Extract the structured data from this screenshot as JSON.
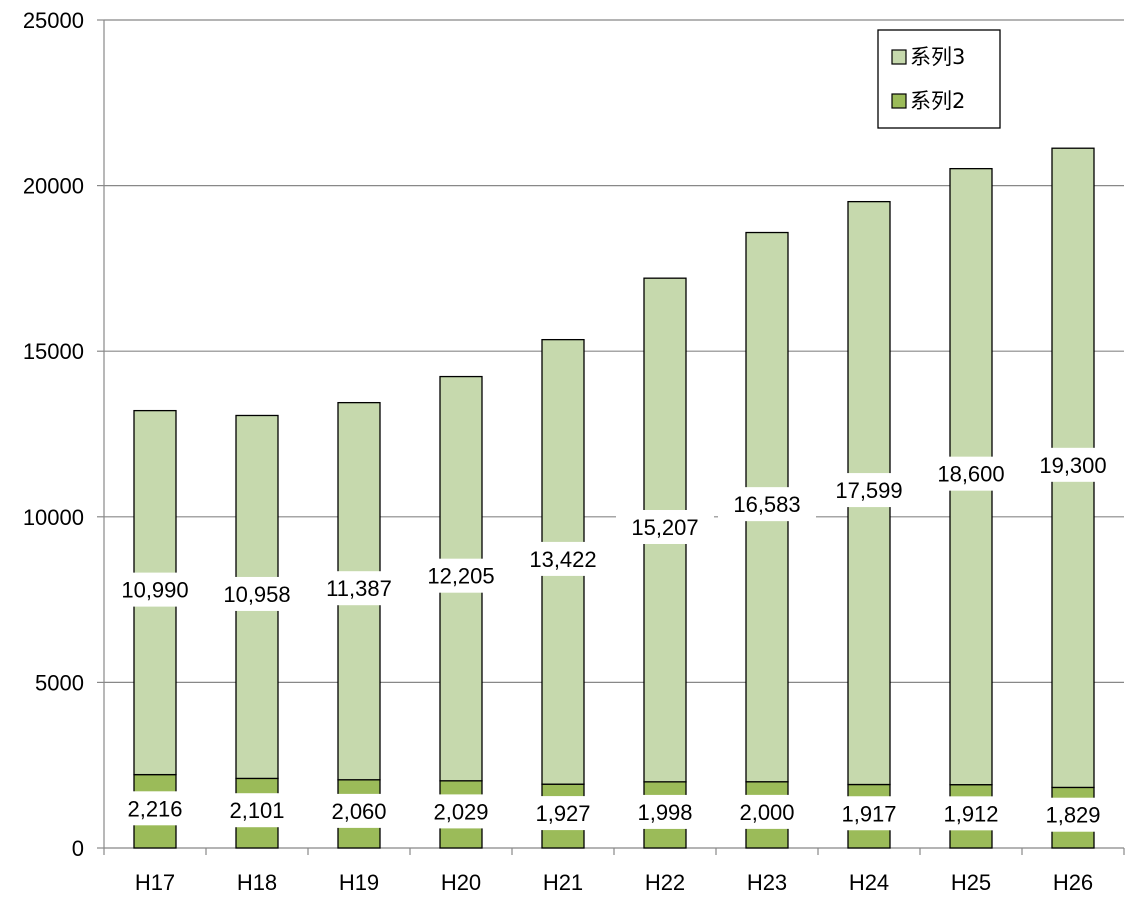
{
  "chart_data": {
    "type": "bar",
    "stacked": true,
    "categories": [
      "H17",
      "H18",
      "H19",
      "H20",
      "H21",
      "H22",
      "H23",
      "H24",
      "H25",
      "H26"
    ],
    "series": [
      {
        "name": "系列2",
        "values": [
          2216,
          2101,
          2060,
          2029,
          1927,
          1998,
          2000,
          1917,
          1912,
          1829
        ],
        "labels": [
          "2,216",
          "2,101",
          "2,060",
          "2,029",
          "1,927",
          "1,998",
          "2,000",
          "1,917",
          "1,912",
          "1,829"
        ],
        "color": "#9BBB59"
      },
      {
        "name": "系列3",
        "values": [
          10990,
          10958,
          11387,
          12205,
          13422,
          15207,
          16583,
          17599,
          18600,
          19300
        ],
        "labels": [
          "10,990",
          "10,958",
          "11,387",
          "12,205",
          "13,422",
          "15,207",
          "16,583",
          "17,599",
          "18,600",
          "19,300"
        ],
        "color": "#C6D9AD"
      }
    ],
    "yticks": [
      "0",
      "5000",
      "10000",
      "15000",
      "20000",
      "25000"
    ],
    "ylim": [
      0,
      25000
    ],
    "grid": true,
    "legend": "top-right",
    "legend_order": [
      "系列3",
      "系列2"
    ]
  }
}
